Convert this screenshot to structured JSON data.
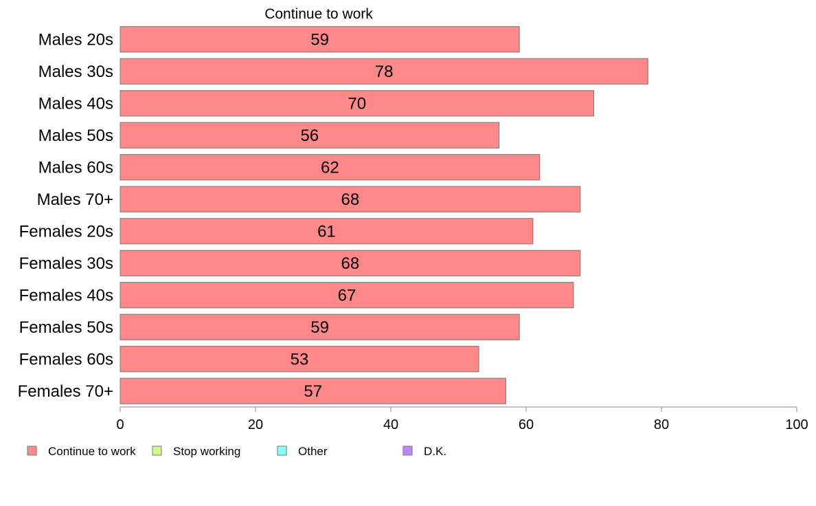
{
  "chart_data": {
    "type": "bar",
    "orientation": "horizontal",
    "title": "Continue to work",
    "categories": [
      "Males 20s",
      "Males 30s",
      "Males 40s",
      "Males 50s",
      "Males 60s",
      "Males 70+",
      "Females 20s",
      "Females 30s",
      "Females 40s",
      "Females 50s",
      "Females 60s",
      "Females 70+"
    ],
    "series": [
      {
        "name": "Continue to work",
        "color": "#ff8888",
        "values": [
          59,
          78,
          70,
          56,
          62,
          68,
          61,
          68,
          67,
          59,
          53,
          57
        ]
      }
    ],
    "value_labels": [
      "59",
      "78",
      "70",
      "56",
      "62",
      "68",
      "61",
      "68",
      "67",
      "59",
      "53",
      "57"
    ],
    "xlim": [
      0,
      100
    ],
    "xticks": [
      0,
      20,
      40,
      60,
      80,
      100
    ],
    "xtick_labels": [
      "0",
      "20",
      "40",
      "60",
      "80",
      "100"
    ],
    "grid": false,
    "legend": {
      "placement": "bottom-left",
      "entries": [
        {
          "label": "Continue to work",
          "color": "#ff8888"
        },
        {
          "label": "Stop working",
          "color": "#ccff88"
        },
        {
          "label": "Other",
          "color": "#88ffff"
        },
        {
          "label": "D.K.",
          "color": "#bb88ff"
        }
      ]
    }
  }
}
